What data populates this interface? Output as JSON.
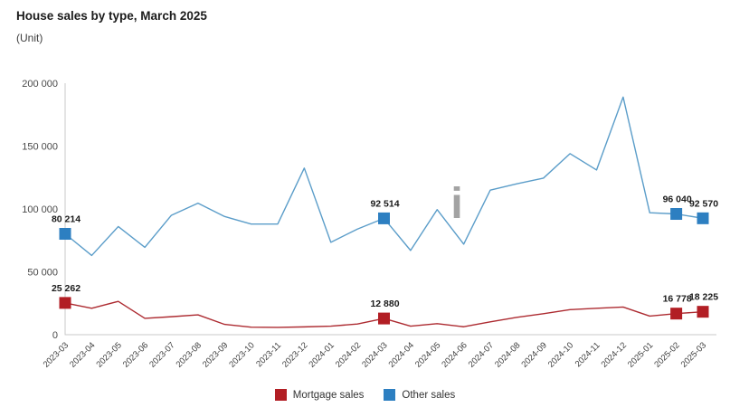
{
  "header": {
    "title": "House sales by type, March 2025",
    "subtitle": "(Unit)"
  },
  "icons": {
    "info": {
      "glyph": "i",
      "color": "#a3a3a3"
    }
  },
  "colors": {
    "axis": "#c9c9c9",
    "y_tick_text": "#4a4a4a",
    "x_tick_text": "#3c3c3c",
    "data_label_text": "#1a1a1a",
    "mortgage_red": "#b21e24",
    "other_blue": "#2d7fc1"
  },
  "chart_data": {
    "type": "line",
    "title": "House sales by type, March 2025",
    "unit_label": "(Unit)",
    "grid": false,
    "legend_position": "bottom",
    "x": [
      "2023-03",
      "2023-04",
      "2023-05",
      "2023-06",
      "2023-07",
      "2023-08",
      "2023-09",
      "2023-10",
      "2023-11",
      "2023-12",
      "2024-01",
      "2024-02",
      "2024-03",
      "2024-04",
      "2024-05",
      "2024-06",
      "2024-07",
      "2024-08",
      "2024-09",
      "2024-10",
      "2024-11",
      "2024-12",
      "2025-01",
      "2025-02",
      "2025-03"
    ],
    "y_axis": {
      "min": 0,
      "max": 200000,
      "tick_interval": 50000,
      "tick_labels": [
        "0",
        "50 000",
        "100 000",
        "150 000",
        "200 000"
      ]
    },
    "series": [
      {
        "name": "Mortgage sales",
        "color": "#b21e24",
        "line_color": "#ad2b31",
        "values": [
          25262,
          21000,
          26500,
          13000,
          14300,
          15800,
          8200,
          6000,
          5800,
          6200,
          6800,
          8500,
          12880,
          6800,
          8800,
          6300,
          10200,
          13800,
          16700,
          19900,
          21000,
          22000,
          14800,
          16778,
          18225
        ],
        "labeled_points": [
          {
            "x": "2023-03",
            "value": 25262,
            "label": "25 262"
          },
          {
            "x": "2024-03",
            "value": 12880,
            "label": "12 880"
          },
          {
            "x": "2025-02",
            "value": 16778,
            "label": "16 778"
          },
          {
            "x": "2025-03",
            "value": 18225,
            "label": "18 225"
          }
        ]
      },
      {
        "name": "Other sales",
        "color": "#2d7fc1",
        "line_color": "#5b9dc9",
        "values": [
          80214,
          63000,
          86000,
          69500,
          95000,
          104600,
          94000,
          88000,
          88000,
          132500,
          73500,
          84000,
          92514,
          67000,
          99500,
          72000,
          115000,
          120000,
          124500,
          144000,
          131000,
          189000,
          97000,
          96040,
          92570
        ],
        "labeled_points": [
          {
            "x": "2023-03",
            "value": 80214,
            "label": "80 214"
          },
          {
            "x": "2024-03",
            "value": 92514,
            "label": "92 514"
          },
          {
            "x": "2025-02",
            "value": 96040,
            "label": "96 040"
          },
          {
            "x": "2025-03",
            "value": 92570,
            "label": "92 570"
          }
        ]
      }
    ]
  }
}
